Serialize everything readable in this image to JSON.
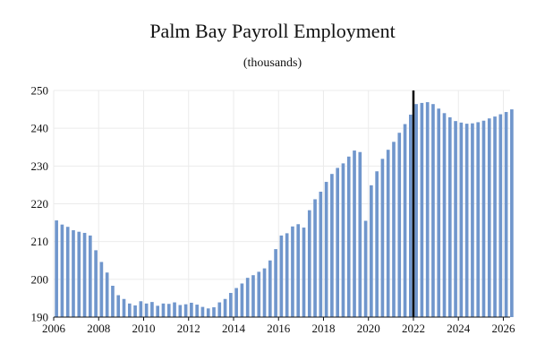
{
  "chart_data": {
    "type": "bar",
    "title": "Palm Bay Payroll Employment",
    "subtitle": "(thousands)",
    "xlabel": "",
    "ylabel": "",
    "ylim": [
      190,
      250
    ],
    "xlim": [
      2006,
      2026.3
    ],
    "yticks": [
      190,
      200,
      210,
      220,
      230,
      240,
      250
    ],
    "xticks": [
      2006,
      2008,
      2010,
      2012,
      2014,
      2016,
      2018,
      2020,
      2022,
      2024,
      2026
    ],
    "grid": true,
    "bar_color": "#7096cc",
    "marker_color": "#000000",
    "forecast_marker_x": 2022.0,
    "x_start": 2006.25,
    "x_step": 0.25,
    "values": [
      215.6,
      214.5,
      213.9,
      213.0,
      212.6,
      212.3,
      211.6,
      207.7,
      204.6,
      201.8,
      198.3,
      195.8,
      194.8,
      193.6,
      193.1,
      194.2,
      193.6,
      194.0,
      193.0,
      193.6,
      193.5,
      193.9,
      193.2,
      193.4,
      193.8,
      193.3,
      192.7,
      192.3,
      192.6,
      193.9,
      194.8,
      196.4,
      197.7,
      198.9,
      200.4,
      201.1,
      202.0,
      202.9,
      205.0,
      208.0,
      211.6,
      212.2,
      214.0,
      214.6,
      213.7,
      218.3,
      221.2,
      223.2,
      225.8,
      227.9,
      229.5,
      230.7,
      232.5,
      234.1,
      233.7,
      215.5,
      224.9,
      228.6,
      231.9,
      234.3,
      236.4,
      238.8,
      241.1,
      243.6,
      246.4,
      246.7,
      246.9,
      246.4,
      245.2,
      244.0,
      242.9,
      241.9,
      241.5,
      241.2,
      241.3,
      241.6,
      242.0,
      242.6,
      243.1,
      243.7,
      244.3,
      245.0
    ]
  }
}
